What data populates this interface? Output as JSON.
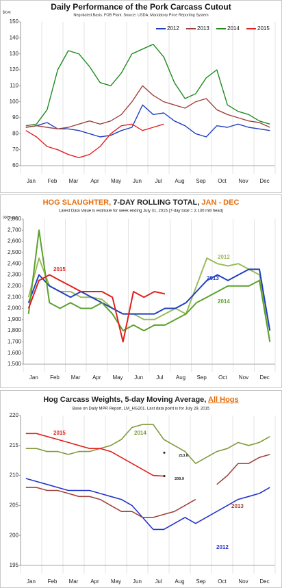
{
  "chart_data": [
    {
      "type": "line",
      "title": "Daily Performance of the Pork Carcass Cutout",
      "subtitle": "Negotiated Basis. FOB Plant. Source: USDA, Mandatory Price Reporting System",
      "y_unit": "$/cwt",
      "categories": [
        "Jan",
        null,
        "Feb",
        null,
        "Mar",
        null,
        "Apr",
        null,
        "May",
        null,
        "Jun",
        null,
        "Jul",
        null,
        "Aug",
        null,
        "Sep",
        null,
        "Oct",
        null,
        "Nov",
        null,
        "Dec",
        null
      ],
      "ylim": [
        60,
        150
      ],
      "yticks": [
        60,
        70,
        80,
        90,
        100,
        110,
        120,
        130,
        140,
        150
      ],
      "legend": "top-right",
      "series": [
        {
          "name": "2012",
          "color": "#1f3fbf",
          "values": [
            84,
            85,
            87,
            83,
            83,
            82,
            80,
            78,
            79,
            82,
            84,
            98,
            92,
            93,
            88,
            85,
            80,
            78,
            85,
            84,
            86,
            84,
            83,
            82
          ]
        },
        {
          "name": "2013",
          "color": "#a0423c",
          "values": [
            84,
            85,
            84,
            83,
            84,
            86,
            88,
            86,
            88,
            92,
            100,
            110,
            104,
            100,
            98,
            96,
            100,
            102,
            95,
            92,
            90,
            88,
            87,
            84
          ]
        },
        {
          "name": "2014",
          "color": "#1e8a1e",
          "values": [
            85,
            86,
            95,
            120,
            132,
            130,
            122,
            112,
            110,
            118,
            130,
            133,
            136,
            128,
            112,
            102,
            105,
            115,
            120,
            98,
            94,
            92,
            88,
            86
          ]
        },
        {
          "name": "2015",
          "color": "#e0201c",
          "values": [
            82,
            78,
            72,
            70,
            67,
            65,
            67,
            72,
            80,
            85,
            86,
            82,
            84,
            86,
            null,
            null,
            null,
            null,
            null,
            null,
            null,
            null,
            null,
            null
          ]
        }
      ]
    },
    {
      "type": "line",
      "title_parts": [
        {
          "text": "HOG SLAUGHTER, ",
          "color": "#e46c0a"
        },
        {
          "text": "7-DAY ROLLING TOTAL, ",
          "color": "#222222"
        },
        {
          "text": "JAN - DEC",
          "color": "#e46c0a"
        }
      ],
      "subtitle": "Latest Data Value is estimate for week ending July 31, 2015 (7-day total = 2.130 mill head)",
      "y_unit": "000 head",
      "categories": [
        "Jan",
        null,
        "Feb",
        null,
        "Mar",
        null,
        "Apr",
        null,
        "May",
        null,
        "Jun",
        null,
        "Jul",
        null,
        "Aug",
        null,
        "Sep",
        null,
        "Oct",
        null,
        "Nov",
        null,
        "Dec",
        null
      ],
      "ylim": [
        1500,
        2800
      ],
      "yticks": [
        {
          "value": 1500,
          "label": "1,500"
        },
        {
          "value": 1600,
          "label": "1,600"
        },
        {
          "value": 1700,
          "label": "1,700"
        },
        {
          "value": 1800,
          "label": "1,800"
        },
        {
          "value": 1900,
          "label": "1,900"
        },
        {
          "value": 2000,
          "label": "2,000"
        },
        {
          "value": 2100,
          "label": "2,100"
        },
        {
          "value": 2200,
          "label": "2,200"
        },
        {
          "value": 2300,
          "label": "2,300"
        },
        {
          "value": 2400,
          "label": "2,400"
        },
        {
          "value": 2500,
          "label": "2,500"
        },
        {
          "value": 2600,
          "label": "2,600"
        },
        {
          "value": 2700,
          "label": "2,700"
        },
        {
          "value": 2800,
          "label": "2,800"
        }
      ],
      "series": [
        {
          "name": "2012",
          "color": "#9bbb59",
          "values": [
            2100,
            2450,
            2200,
            2150,
            2150,
            2100,
            2100,
            2080,
            2000,
            1950,
            1950,
            1900,
            1900,
            1950,
            2000,
            1950,
            2200,
            2450,
            2400,
            2380,
            2400,
            2350,
            2300,
            1700
          ]
        },
        {
          "name": "2013",
          "color": "#1f3fbf",
          "values": [
            2050,
            2300,
            2200,
            2150,
            2100,
            2150,
            2100,
            2050,
            2000,
            1950,
            1950,
            1950,
            1950,
            2000,
            2000,
            2050,
            2150,
            2250,
            2300,
            2250,
            2300,
            2350,
            2350,
            1800
          ]
        },
        {
          "name": "2014",
          "color": "#5aa02c",
          "values": [
            1950,
            2700,
            2050,
            2000,
            2050,
            2000,
            2000,
            2050,
            1950,
            1800,
            1850,
            1800,
            1850,
            1850,
            1900,
            1950,
            2050,
            2100,
            2150,
            2200,
            2200,
            2200,
            2250,
            1700
          ]
        },
        {
          "name": "2015",
          "color": "#e0201c",
          "values": [
            2000,
            2250,
            2300,
            2250,
            2200,
            2150,
            2150,
            2150,
            2100,
            1700,
            2150,
            2100,
            2150,
            2130,
            null,
            null,
            null,
            null,
            null,
            null,
            null,
            null,
            null,
            null
          ]
        }
      ]
    },
    {
      "type": "line",
      "title_parts": [
        {
          "text": "Hog Carcass Weights, 5-day Moving Average, ",
          "color": "#222222"
        },
        {
          "text": "All Hogs",
          "color": "#e46c0a"
        }
      ],
      "subtitle": "Base on Daily MPR Report, LM_HG201.  Last data point is for July 29, 2015",
      "categories": [
        "Jan",
        null,
        "Feb",
        null,
        "Mar",
        null,
        "Apr",
        null,
        "May",
        null,
        "Jun",
        null,
        "Jul",
        null,
        "Aug",
        null,
        "Sep",
        null,
        "Oct",
        null,
        "Nov",
        null,
        "Dec",
        null
      ],
      "ylim": [
        195,
        220
      ],
      "yticks": [
        195,
        200,
        205,
        210,
        215,
        220
      ],
      "series": [
        {
          "name": "2012",
          "color": "#2233cc",
          "values": [
            209.5,
            209,
            208.5,
            208,
            207.5,
            207.5,
            207.5,
            207,
            206.5,
            206,
            205,
            203,
            201,
            201,
            202,
            203,
            202,
            203,
            204,
            205,
            206,
            206.5,
            207,
            208
          ]
        },
        {
          "name": "2013",
          "color": "#a0423c",
          "values": [
            208,
            208,
            207.5,
            207.5,
            207,
            206.5,
            206.5,
            206,
            205,
            204,
            204,
            203,
            203,
            203.5,
            204,
            205,
            206,
            null,
            208.5,
            210,
            212,
            212,
            213,
            213.5
          ]
        },
        {
          "name": "2014",
          "color": "#7f9a3a",
          "values": [
            214.5,
            214.5,
            214,
            214,
            213.5,
            214,
            214,
            214.5,
            215,
            216,
            218,
            218.5,
            218.5,
            216,
            215,
            214,
            212,
            213,
            214,
            214.5,
            215.5,
            215,
            215.5,
            216.5
          ]
        },
        {
          "name": "2015",
          "color": "#e0201c",
          "values": [
            217,
            217,
            216.5,
            216,
            215.5,
            215,
            214.5,
            214.5,
            214,
            213,
            212,
            211,
            210,
            209.9,
            null,
            null,
            null,
            null,
            null,
            null,
            null,
            null,
            null,
            null
          ]
        }
      ],
      "annotations": [
        {
          "value": 213.8,
          "label": "213.8"
        },
        {
          "value": 209.9,
          "label": "209.9"
        }
      ]
    }
  ]
}
